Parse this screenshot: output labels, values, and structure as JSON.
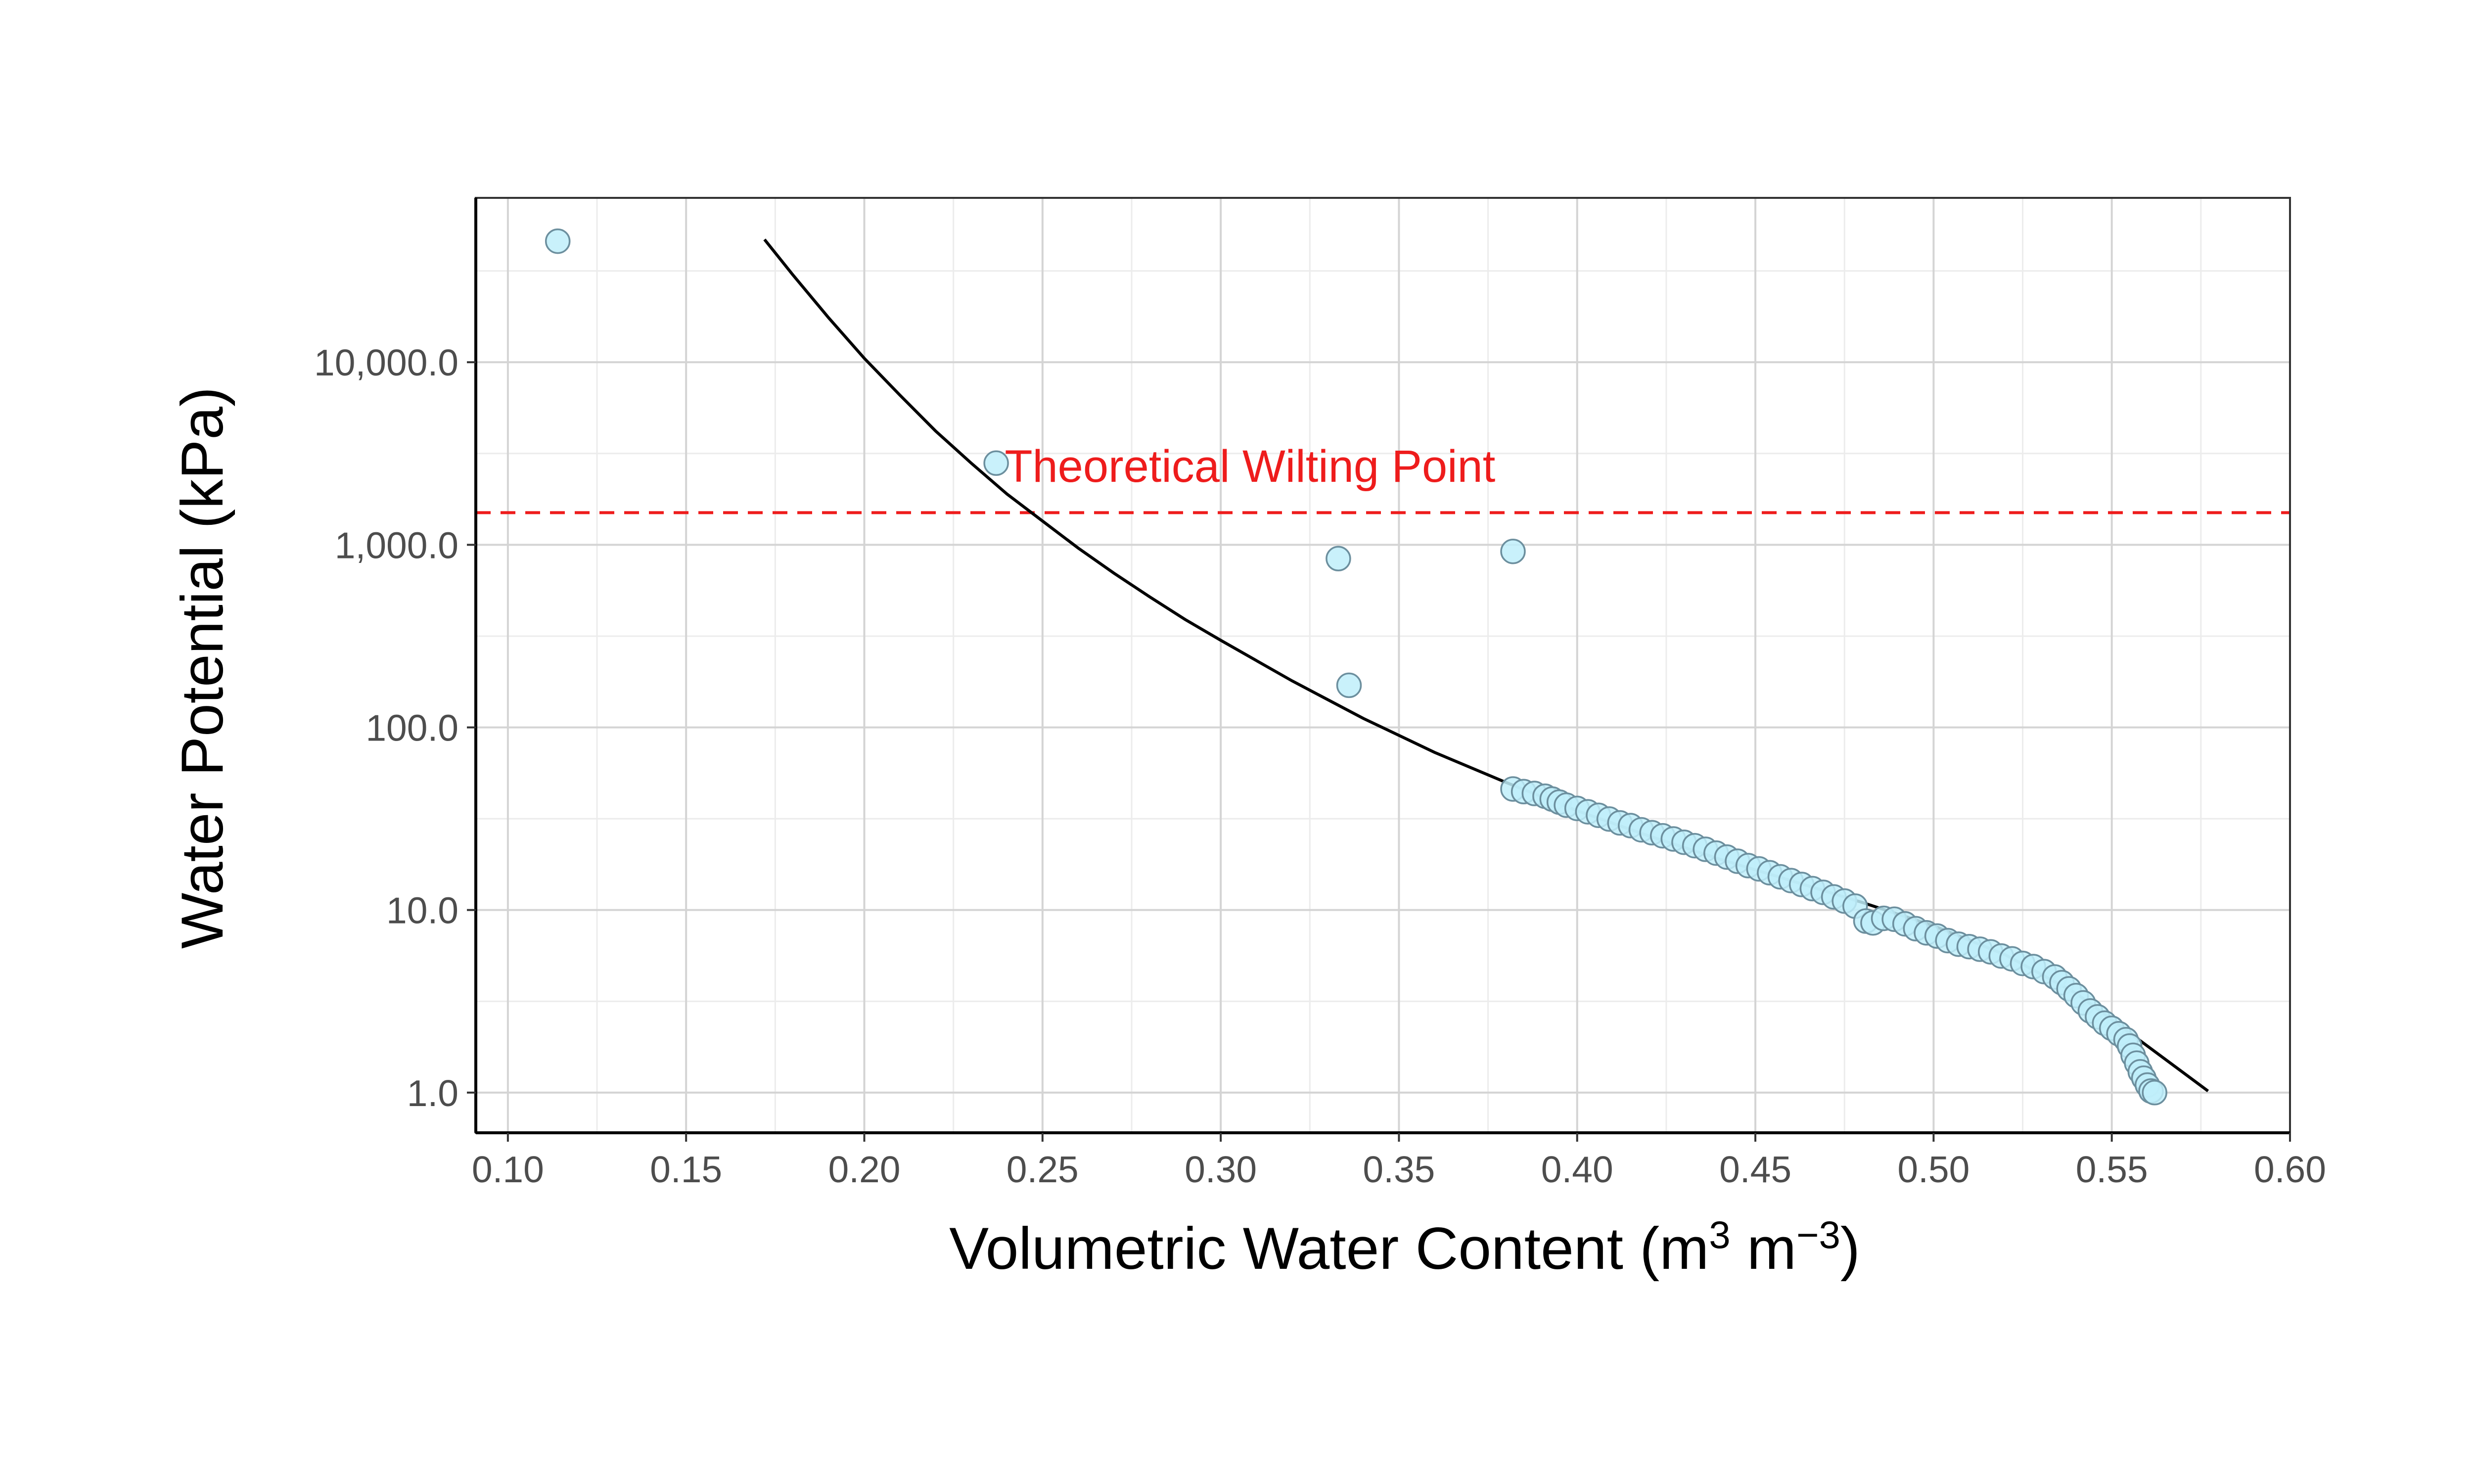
{
  "chart_data": {
    "type": "scatter",
    "title": "",
    "xlabel": {
      "main": "Volumetric Water Content (m",
      "sup1": "3",
      "mid": " m",
      "sup2": "−3",
      "end": ")"
    },
    "ylabel": "Water Potential (kPa)",
    "xlim": [
      0.091,
      0.6
    ],
    "ylim_log10": [
      -0.22,
      4.9
    ],
    "y_scale": "log",
    "x_ticks": [
      0.1,
      0.15,
      0.2,
      0.25,
      0.3,
      0.35,
      0.4,
      0.45,
      0.5,
      0.55,
      0.6
    ],
    "x_tick_labels": [
      "0.10",
      "0.15",
      "0.20",
      "0.25",
      "0.30",
      "0.35",
      "0.40",
      "0.45",
      "0.50",
      "0.55",
      "0.60"
    ],
    "y_ticks": [
      1,
      10,
      100,
      1000,
      10000
    ],
    "y_tick_labels": [
      "1.0",
      "10.0",
      "100.0",
      "1,000.0",
      "10,000.0"
    ],
    "grid": true,
    "colors": {
      "point_fill": "#bfeefa",
      "point_stroke": "#6c8f9e",
      "curve": "#000000",
      "reference": "#ee1c1c",
      "grid": "#d4d4d4"
    },
    "series": [
      {
        "kind": "points",
        "points": [
          [
            0.114,
            46000
          ],
          [
            0.237,
            2800
          ],
          [
            0.333,
            840
          ],
          [
            0.382,
            920
          ],
          [
            0.336,
            170
          ],
          [
            0.382,
            46
          ],
          [
            0.385,
            44.5
          ],
          [
            0.388,
            43.5
          ],
          [
            0.391,
            42
          ],
          [
            0.393,
            40.5
          ],
          [
            0.395,
            39
          ],
          [
            0.397,
            37.5
          ],
          [
            0.4,
            36
          ],
          [
            0.403,
            34.5
          ],
          [
            0.406,
            33
          ],
          [
            0.409,
            31.5
          ],
          [
            0.412,
            30
          ],
          [
            0.415,
            29
          ],
          [
            0.418,
            27.5
          ],
          [
            0.421,
            26.5
          ],
          [
            0.424,
            25.5
          ],
          [
            0.427,
            24.5
          ],
          [
            0.43,
            23.5
          ],
          [
            0.433,
            22.5
          ],
          [
            0.436,
            21.5
          ],
          [
            0.439,
            20.5
          ],
          [
            0.442,
            19.5
          ],
          [
            0.445,
            18.5
          ],
          [
            0.448,
            17.5
          ],
          [
            0.451,
            16.8
          ],
          [
            0.454,
            16
          ],
          [
            0.457,
            15.2
          ],
          [
            0.46,
            14.5
          ],
          [
            0.463,
            13.8
          ],
          [
            0.466,
            13.1
          ],
          [
            0.469,
            12.5
          ],
          [
            0.472,
            11.8
          ],
          [
            0.475,
            11.2
          ],
          [
            0.478,
            10.5
          ],
          [
            0.481,
            8.7
          ],
          [
            0.483,
            8.5
          ],
          [
            0.486,
            9.0
          ],
          [
            0.489,
            8.9
          ],
          [
            0.492,
            8.4
          ],
          [
            0.495,
            7.9
          ],
          [
            0.498,
            7.5
          ],
          [
            0.501,
            7.2
          ],
          [
            0.504,
            6.8
          ],
          [
            0.507,
            6.5
          ],
          [
            0.51,
            6.3
          ],
          [
            0.513,
            6.1
          ],
          [
            0.516,
            5.9
          ],
          [
            0.519,
            5.6
          ],
          [
            0.522,
            5.4
          ],
          [
            0.525,
            5.1
          ],
          [
            0.528,
            4.9
          ],
          [
            0.531,
            4.6
          ],
          [
            0.534,
            4.3
          ],
          [
            0.536,
            4.0
          ],
          [
            0.538,
            3.7
          ],
          [
            0.54,
            3.4
          ],
          [
            0.542,
            3.1
          ],
          [
            0.544,
            2.8
          ],
          [
            0.546,
            2.6
          ],
          [
            0.548,
            2.4
          ],
          [
            0.55,
            2.25
          ],
          [
            0.552,
            2.1
          ],
          [
            0.554,
            1.95
          ],
          [
            0.555,
            1.8
          ],
          [
            0.556,
            1.6
          ],
          [
            0.557,
            1.45
          ],
          [
            0.558,
            1.3
          ],
          [
            0.559,
            1.2
          ],
          [
            0.56,
            1.1
          ],
          [
            0.561,
            1.02
          ],
          [
            0.562,
            1.0
          ]
        ]
      },
      {
        "kind": "fitted-curve",
        "points": [
          [
            0.172,
            47000
          ],
          [
            0.18,
            30000
          ],
          [
            0.19,
            17500
          ],
          [
            0.2,
            10500
          ],
          [
            0.21,
            6600
          ],
          [
            0.22,
            4200
          ],
          [
            0.23,
            2800
          ],
          [
            0.24,
            1900
          ],
          [
            0.25,
            1350
          ],
          [
            0.26,
            960
          ],
          [
            0.27,
            700
          ],
          [
            0.28,
            520
          ],
          [
            0.29,
            390
          ],
          [
            0.3,
            300
          ],
          [
            0.32,
            180
          ],
          [
            0.34,
            112
          ],
          [
            0.36,
            73
          ],
          [
            0.38,
            50
          ],
          [
            0.4,
            35
          ],
          [
            0.42,
            25.5
          ],
          [
            0.44,
            19
          ],
          [
            0.46,
            14.5
          ],
          [
            0.48,
            11
          ],
          [
            0.5,
            8.2
          ],
          [
            0.52,
            5.7
          ],
          [
            0.54,
            3.5
          ],
          [
            0.56,
            1.8
          ],
          [
            0.577,
            1.02
          ]
        ]
      }
    ],
    "reference_line": {
      "y": 1500,
      "label": "Theoretical Wilting Point",
      "label_x": 0.238,
      "label_y": 2700
    }
  }
}
